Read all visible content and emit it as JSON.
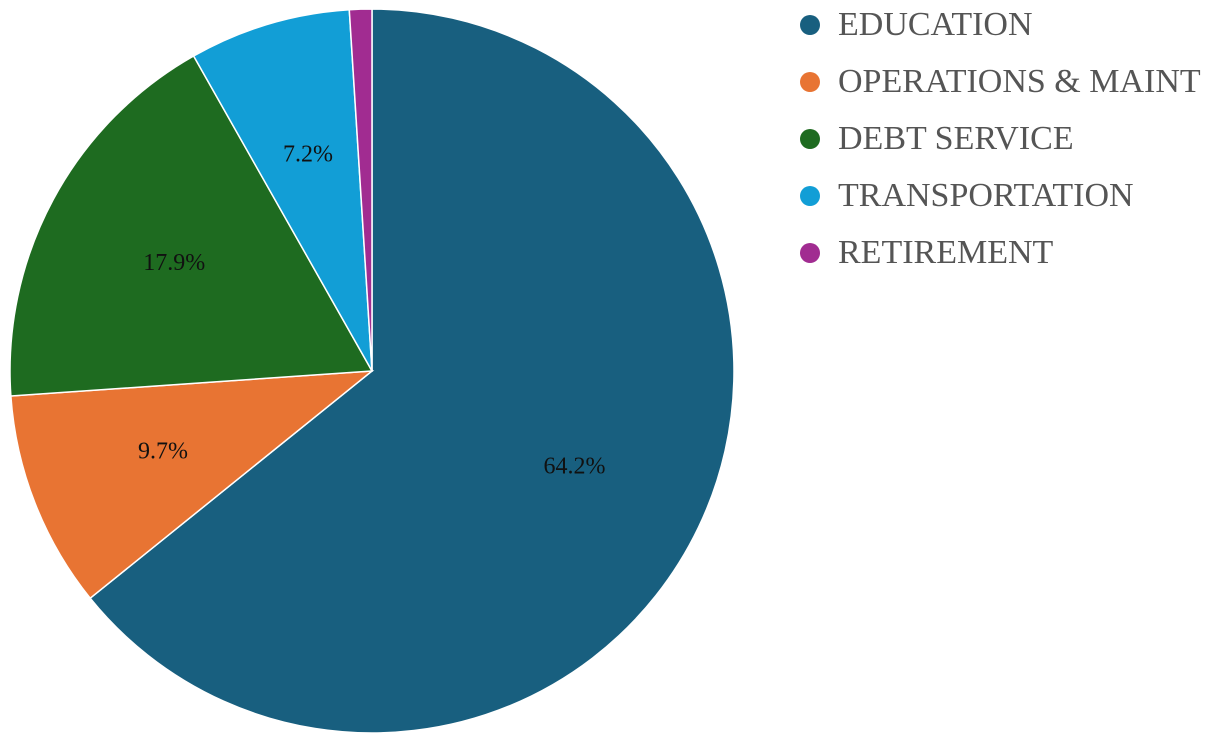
{
  "chart_data": {
    "type": "pie",
    "title": "",
    "categories": [
      "EDUCATION",
      "OPERATIONS & MAINT",
      "DEBT SERVICE",
      "TRANSPORTATION",
      "RETIREMENT"
    ],
    "values": [
      64.2,
      9.7,
      17.9,
      7.2,
      1.0
    ],
    "value_labels": [
      "64.2%",
      "9.7%",
      "17.9%",
      "7.2%",
      ""
    ],
    "colors": [
      "#185F7F",
      "#E87433",
      "#1E6B20",
      "#129ED6",
      "#A12C91"
    ],
    "start_angle_deg": 0,
    "direction": "clockwise",
    "legend": {
      "position": "top-right"
    }
  }
}
